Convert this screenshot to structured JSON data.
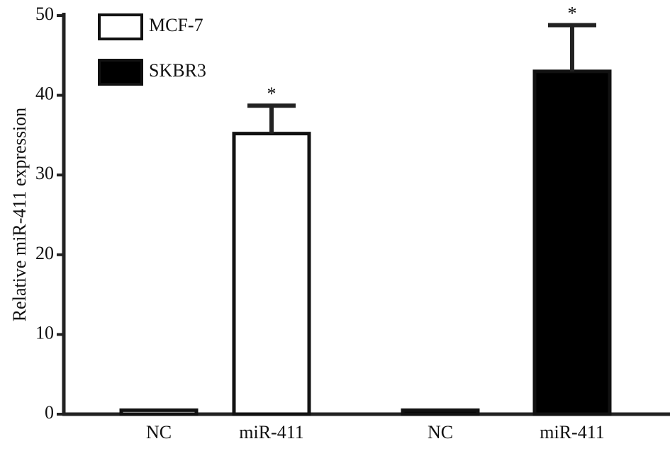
{
  "chart_data": {
    "type": "bar",
    "y_label": "Relative miR-411 expression",
    "categories": [
      "NC",
      "miR-411",
      "NC",
      "miR-411"
    ],
    "series": [
      {
        "name": "MCF-7",
        "color": "#ffffff",
        "values": [
          0.5,
          35.2,
          null,
          null
        ],
        "errors": [
          null,
          3.5,
          null,
          null
        ],
        "labels": [
          null,
          "*",
          null,
          null
        ]
      },
      {
        "name": "SKBR3",
        "color": "#000000",
        "values": [
          null,
          null,
          0.5,
          43.0
        ],
        "errors": [
          null,
          null,
          null,
          5.8
        ],
        "labels": [
          null,
          null,
          null,
          "*"
        ]
      }
    ],
    "ylim": [
      0,
      50
    ],
    "yticks": [
      0,
      10,
      20,
      30,
      40,
      50
    ],
    "grid": false
  }
}
